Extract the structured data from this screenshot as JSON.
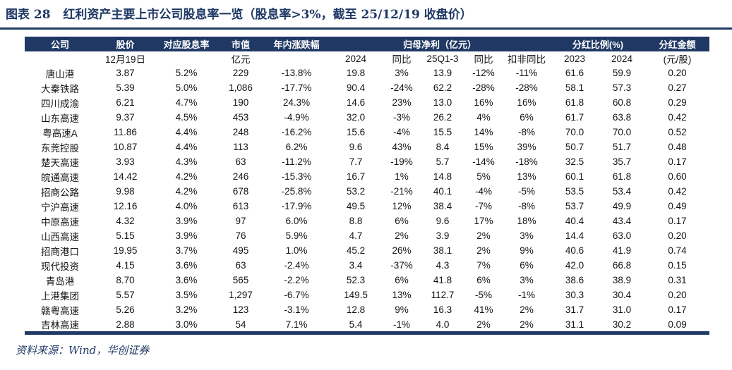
{
  "title": "图表 28   红利资产主要上市公司股息率一览（股息率>3%，截至 25/12/19 收盘价）",
  "source_note": "资料来源：Wind，华创证券",
  "colors": {
    "accent_navy": "#1F3864",
    "header_text": "#ffffff",
    "body_text": "#141414",
    "background": "#ffffff"
  },
  "table": {
    "group_headers": [
      {
        "id": "company",
        "label": "公司",
        "colspan": 1
      },
      {
        "id": "price",
        "label": "股价",
        "colspan": 1
      },
      {
        "id": "dividend-yield",
        "label": "对应股息率",
        "colspan": 1
      },
      {
        "id": "market-cap",
        "label": "市值",
        "colspan": 1
      },
      {
        "id": "ytd-change",
        "label": "年内涨跌幅",
        "colspan": 1
      },
      {
        "id": "net-profit",
        "label": "归母净利（亿元）",
        "colspan": 5
      },
      {
        "id": "payout-ratio",
        "label": "分红比例(%)",
        "colspan": 2
      },
      {
        "id": "dividend-per-share",
        "label": "分红金额",
        "colspan": 1
      }
    ],
    "sub_headers": [
      "",
      "12月19日",
      "",
      "亿元",
      "",
      "2024",
      "同比",
      "25Q1-3",
      "同比",
      "扣非同比",
      "2023",
      "2024",
      "(元/股)"
    ],
    "rows": [
      [
        "唐山港",
        "3.87",
        "5.2%",
        "229",
        "-13.8%",
        "19.8",
        "3%",
        "13.9",
        "-12%",
        "-11%",
        "61.6",
        "59.9",
        "0.20"
      ],
      [
        "大秦铁路",
        "5.39",
        "5.0%",
        "1,086",
        "-17.7%",
        "90.4",
        "-24%",
        "62.2",
        "-28%",
        "-28%",
        "58.1",
        "57.3",
        "0.27"
      ],
      [
        "四川成渝",
        "6.21",
        "4.7%",
        "190",
        "24.3%",
        "14.6",
        "23%",
        "13.0",
        "16%",
        "16%",
        "61.8",
        "60.8",
        "0.29"
      ],
      [
        "山东高速",
        "9.37",
        "4.5%",
        "453",
        "-4.9%",
        "32.0",
        "-3%",
        "26.2",
        "4%",
        "6%",
        "61.7",
        "63.8",
        "0.42"
      ],
      [
        "粤高速A",
        "11.86",
        "4.4%",
        "248",
        "-16.2%",
        "15.6",
        "-4%",
        "15.5",
        "14%",
        "-8%",
        "70.0",
        "70.0",
        "0.52"
      ],
      [
        "东莞控股",
        "10.87",
        "4.4%",
        "113",
        "6.2%",
        "9.6",
        "43%",
        "8.4",
        "15%",
        "39%",
        "50.7",
        "51.7",
        "0.48"
      ],
      [
        "楚天高速",
        "3.93",
        "4.3%",
        "63",
        "-11.2%",
        "7.7",
        "-19%",
        "5.7",
        "-14%",
        "-18%",
        "32.5",
        "35.7",
        "0.17"
      ],
      [
        "皖通高速",
        "14.42",
        "4.2%",
        "246",
        "-15.3%",
        "16.7",
        "1%",
        "14.8",
        "5%",
        "13%",
        "60.1",
        "61.8",
        "0.60"
      ],
      [
        "招商公路",
        "9.98",
        "4.2%",
        "678",
        "-25.8%",
        "53.2",
        "-21%",
        "40.1",
        "-4%",
        "-5%",
        "53.5",
        "53.4",
        "0.42"
      ],
      [
        "宁沪高速",
        "12.16",
        "4.0%",
        "613",
        "-17.9%",
        "49.5",
        "12%",
        "38.4",
        "-7%",
        "-8%",
        "53.7",
        "49.9",
        "0.49"
      ],
      [
        "中原高速",
        "4.32",
        "3.9%",
        "97",
        "6.0%",
        "8.8",
        "6%",
        "9.6",
        "17%",
        "18%",
        "40.4",
        "43.4",
        "0.17"
      ],
      [
        "山西高速",
        "5.15",
        "3.9%",
        "76",
        "5.9%",
        "4.7",
        "2%",
        "3.9",
        "2%",
        "3%",
        "14.4",
        "63.0",
        "0.20"
      ],
      [
        "招商港口",
        "19.95",
        "3.7%",
        "495",
        "1.0%",
        "45.2",
        "26%",
        "38.1",
        "2%",
        "9%",
        "40.6",
        "41.9",
        "0.74"
      ],
      [
        "现代投资",
        "4.15",
        "3.6%",
        "63",
        "-2.4%",
        "3.4",
        "-37%",
        "4.3",
        "7%",
        "6%",
        "42.0",
        "66.8",
        "0.15"
      ],
      [
        "青岛港",
        "8.70",
        "3.6%",
        "565",
        "-2.2%",
        "52.3",
        "6%",
        "41.8",
        "6%",
        "3%",
        "38.6",
        "38.9",
        "0.31"
      ],
      [
        "上港集团",
        "5.57",
        "3.5%",
        "1,297",
        "-6.7%",
        "149.5",
        "13%",
        "112.7",
        "-5%",
        "-1%",
        "30.3",
        "30.4",
        "0.20"
      ],
      [
        "赣粤高速",
        "5.26",
        "3.2%",
        "123",
        "-3.1%",
        "12.8",
        "9%",
        "16.3",
        "41%",
        "2%",
        "31.7",
        "31.0",
        "0.17"
      ],
      [
        "吉林高速",
        "2.88",
        "3.0%",
        "54",
        "7.1%",
        "5.4",
        "-1%",
        "4.0",
        "2%",
        "2%",
        "31.1",
        "30.2",
        "0.09"
      ]
    ]
  }
}
